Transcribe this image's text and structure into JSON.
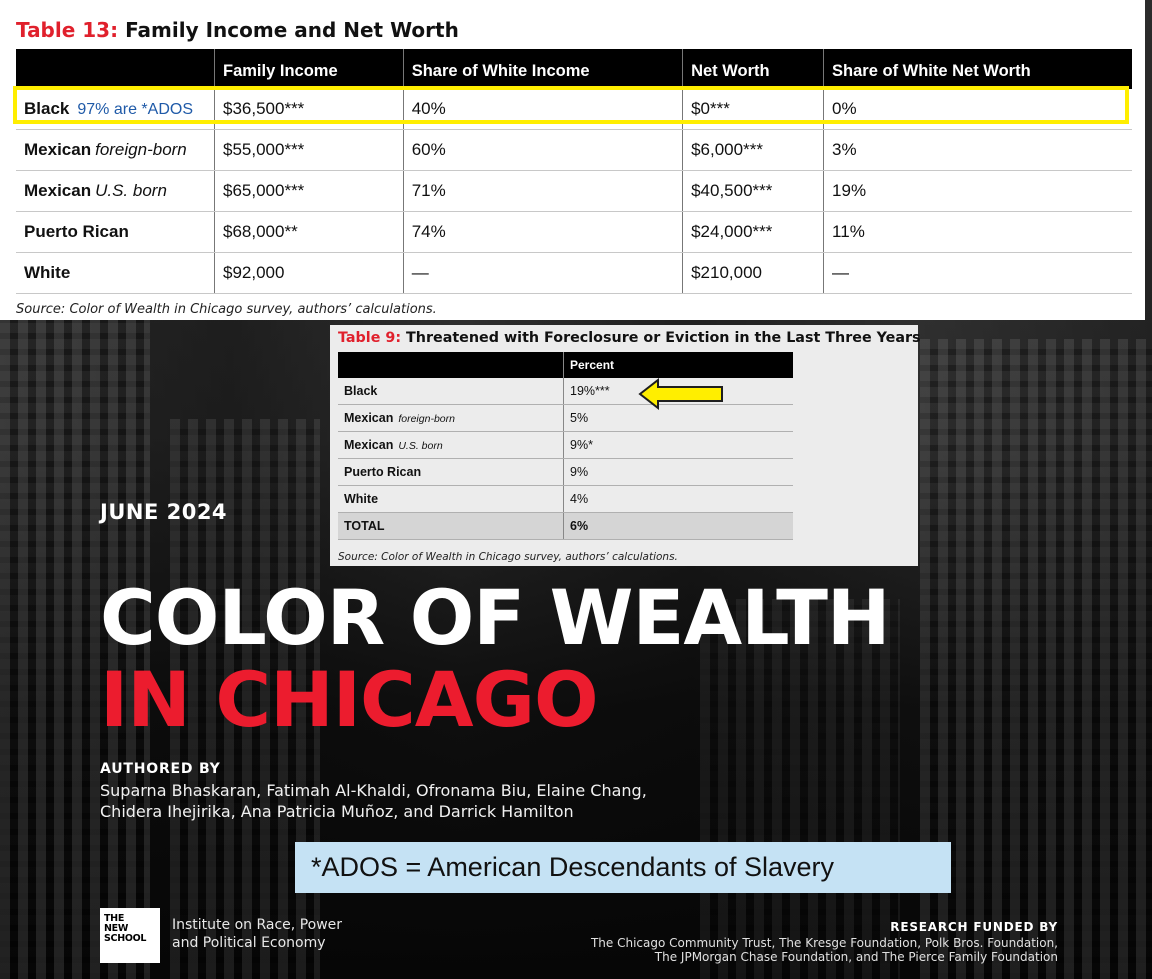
{
  "table13": {
    "label": "Table 13:",
    "title": "Family Income and Net Worth",
    "columns": [
      "",
      "Family Income",
      "Share of White Income",
      "Net Worth",
      "Share of White Net Worth"
    ],
    "rows": [
      {
        "group": "Black",
        "qualifier": "",
        "note": "97% are *ADOS",
        "family_income": "$36,500***",
        "share_income": "40%",
        "net_worth": "$0***",
        "share_net_worth": "0%"
      },
      {
        "group": "Mexican",
        "qualifier": "foreign-born",
        "note": "",
        "family_income": "$55,000***",
        "share_income": "60%",
        "net_worth": "$6,000***",
        "share_net_worth": "3%"
      },
      {
        "group": "Mexican",
        "qualifier": "U.S. born",
        "note": "",
        "family_income": "$65,000***",
        "share_income": "71%",
        "net_worth": "$40,500***",
        "share_net_worth": "19%"
      },
      {
        "group": "Puerto Rican",
        "qualifier": "",
        "note": "",
        "family_income": "$68,000**",
        "share_income": "74%",
        "net_worth": "$24,000***",
        "share_net_worth": "11%"
      },
      {
        "group": "White",
        "qualifier": "",
        "note": "",
        "family_income": "$92,000",
        "share_income": "—",
        "net_worth": "$210,000",
        "share_net_worth": "—"
      }
    ],
    "source": "Source: Color of Wealth in Chicago survey, authors’ calculations.",
    "highlight_color": "#ffee00",
    "note_color": "#1f5aa8"
  },
  "table9": {
    "label": "Table 9:",
    "title": "Threatened with Foreclosure or Eviction in the Last Three Years",
    "columns": [
      "",
      "Percent"
    ],
    "rows": [
      {
        "group": "Black",
        "qualifier": "",
        "percent": "19%***"
      },
      {
        "group": "Mexican",
        "qualifier": "foreign-born",
        "percent": "5%"
      },
      {
        "group": "Mexican",
        "qualifier": "U.S. born",
        "percent": "9%*"
      },
      {
        "group": "Puerto Rican",
        "qualifier": "",
        "percent": "9%"
      },
      {
        "group": "White",
        "qualifier": "",
        "percent": "4%"
      }
    ],
    "total": {
      "group": "TOTAL",
      "percent": "6%"
    },
    "source": "Source: Color of Wealth in Chicago survey, authors’ calculations.",
    "arrow_color": "#ffee00"
  },
  "cover": {
    "date": "JUNE 2024",
    "title_line1": "COLOR OF WEALTH",
    "title_line2": "IN CHICAGO",
    "title_accent": "#ec1c2e",
    "authored_by": "AUTHORED BY",
    "authors_line1": "Suparna Bhaskaran, Fatimah Al-Khaldi, Ofronama Biu, Elaine Chang,",
    "authors_line2": "Chidera Ihejirika, Ana Patricia Muñoz, and Darrick Hamilton",
    "ados_definition": "*ADOS = American Descendants of Slavery",
    "logo_lines": [
      "THE",
      "NEW",
      "SCHOOL"
    ],
    "institute_line1": "Institute on Race, Power",
    "institute_line2": "and Political Economy",
    "funded_by": "RESEARCH FUNDED BY",
    "funders_line1": "The Chicago Community Trust, The Kresge Foundation, Polk Bros. Foundation,",
    "funders_line2": "The JPMorgan Chase Foundation, and The Pierce Family Foundation"
  }
}
